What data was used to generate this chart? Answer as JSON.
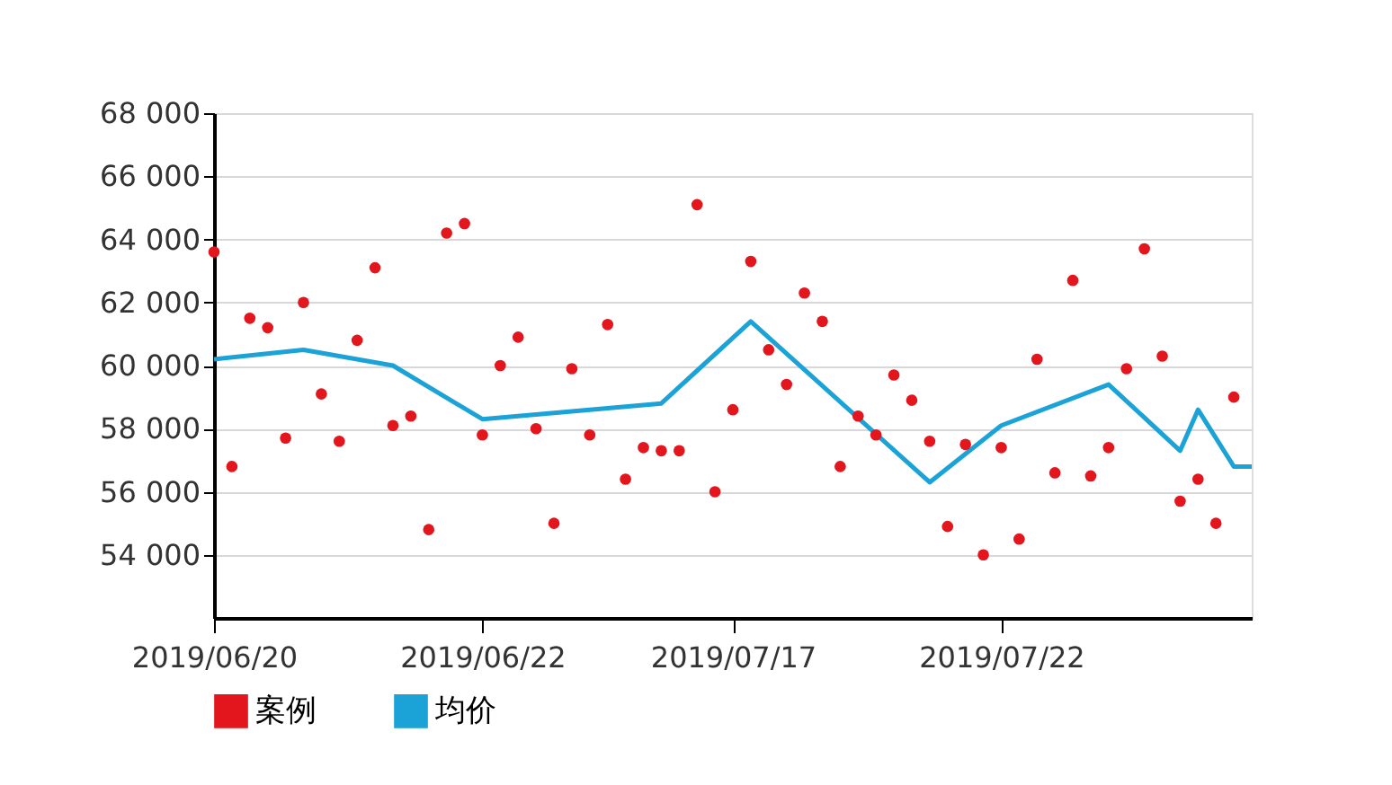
{
  "chart_data": {
    "type": "scatter",
    "categories": [
      "2019/06/20",
      null,
      null,
      null,
      null,
      null,
      null,
      null,
      null,
      null,
      null,
      null,
      null,
      null,
      null,
      "2019/06/22",
      null,
      null,
      null,
      null,
      null,
      null,
      null,
      null,
      null,
      null,
      null,
      null,
      null,
      "2019/07/17",
      null,
      null,
      null,
      null,
      null,
      null,
      null,
      null,
      null,
      null,
      null,
      null,
      null,
      null,
      "2019/07/22",
      null,
      null,
      null,
      null,
      null,
      null,
      null,
      null,
      null,
      null,
      null,
      null,
      null,
      null
    ],
    "series": [
      {
        "name": "案例",
        "color": "#e3161e",
        "values": [
          63600,
          56800,
          61500,
          61200,
          57700,
          62000,
          59100,
          57600,
          60800,
          63100,
          58100,
          58400,
          54800,
          64200,
          64500,
          57800,
          60000,
          60900,
          58000,
          55000,
          59900,
          57800,
          61300,
          56400,
          57400,
          57300,
          57300,
          65100,
          56000,
          58600,
          63300,
          60500,
          59400,
          62300,
          61400,
          56800,
          58400,
          57800,
          59700,
          58900,
          57600,
          54900,
          57500,
          54000,
          57400,
          54500,
          60200,
          56600,
          62700,
          56500,
          57400,
          59900,
          63700,
          60300,
          55700,
          56400,
          55000,
          59000,
          null
        ]
      },
      {
        "name": "均价",
        "type": "line",
        "color": "#1ba3d8",
        "values": [
          60200,
          null,
          null,
          null,
          null,
          60500,
          null,
          null,
          null,
          null,
          60000,
          null,
          null,
          null,
          null,
          58300,
          null,
          null,
          null,
          null,
          null,
          null,
          null,
          null,
          null,
          58800,
          null,
          null,
          null,
          null,
          61400,
          null,
          null,
          null,
          null,
          null,
          null,
          null,
          null,
          null,
          56300,
          null,
          null,
          null,
          58100,
          null,
          null,
          null,
          null,
          null,
          59400,
          null,
          null,
          null,
          57300,
          58600,
          null,
          56800,
          56800
        ]
      }
    ],
    "ylim": [
      52000,
      68000
    ],
    "yticks": [
      {
        "value": 54000,
        "label": "54 000"
      },
      {
        "value": 56000,
        "label": "56 000"
      },
      {
        "value": 58000,
        "label": "58 000"
      },
      {
        "value": 60000,
        "label": "60 000"
      },
      {
        "value": 62000,
        "label": "62 000"
      },
      {
        "value": 64000,
        "label": "64 000"
      },
      {
        "value": 66000,
        "label": "66 000"
      },
      {
        "value": 68000,
        "label": "68 000"
      }
    ],
    "grid": "y",
    "legend": "bottom",
    "line_style": "solid"
  }
}
